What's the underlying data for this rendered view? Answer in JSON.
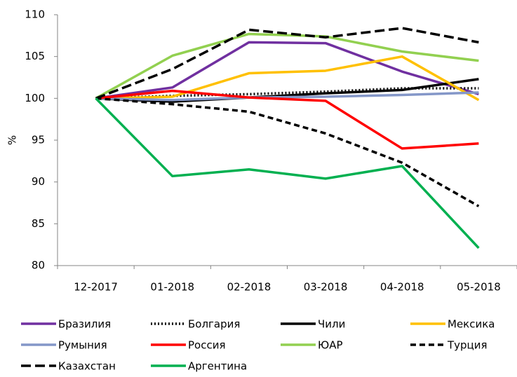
{
  "chart_data": {
    "type": "line",
    "y_label": "%",
    "categories": [
      "12-2017",
      "01-2018",
      "02-2018",
      "03-2018",
      "04-2018",
      "05-2018"
    ],
    "ylim": [
      80,
      110
    ],
    "yticks": [
      80,
      85,
      90,
      95,
      100,
      105,
      110
    ],
    "grid": false,
    "legend": "bottom",
    "series": [
      {
        "name": "Бразилия",
        "color": "#7030a0",
        "values": [
          100,
          101.3,
          106.7,
          106.6,
          103.2,
          100.5
        ]
      },
      {
        "name": "Болгария",
        "color": "#000000",
        "dash": "2,3",
        "values": [
          100,
          100.3,
          100.5,
          100.8,
          101.2,
          101.2
        ]
      },
      {
        "name": "Чили",
        "color": "#000000",
        "values": [
          100,
          99.6,
          100.1,
          100.6,
          101.0,
          102.3
        ]
      },
      {
        "name": "Мексика",
        "color": "#ffc000",
        "values": [
          100,
          100.2,
          103.0,
          103.3,
          105.0,
          99.8
        ]
      },
      {
        "name": "Румыния",
        "color": "#8497c8",
        "values": [
          100,
          99.8,
          100.1,
          100.2,
          100.4,
          100.7
        ]
      },
      {
        "name": "Россия",
        "color": "#ff0000",
        "values": [
          100,
          100.9,
          100.1,
          99.7,
          94.0,
          94.6
        ]
      },
      {
        "name": "ЮАР",
        "color": "#92d050",
        "values": [
          100,
          105.1,
          107.7,
          107.4,
          105.6,
          104.5
        ]
      },
      {
        "name": "Турция",
        "color": "#000000",
        "dash": "8,5",
        "values": [
          100,
          99.3,
          98.4,
          95.8,
          92.3,
          87.1
        ]
      },
      {
        "name": "Казахстан",
        "color": "#000000",
        "dash": "14,6",
        "values": [
          100,
          103.5,
          108.2,
          107.3,
          108.4,
          106.7
        ]
      },
      {
        "name": "Аргентина",
        "color": "#00b050",
        "values": [
          100,
          90.7,
          91.5,
          90.4,
          91.9,
          82.1
        ]
      }
    ]
  }
}
